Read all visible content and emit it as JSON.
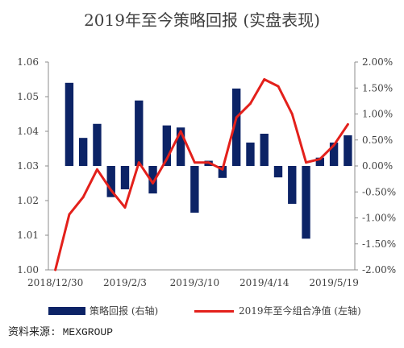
{
  "source": "资料来源: MEXGROUP",
  "chart_data": {
    "type": "bar",
    "title": "2019年至今策略回报 (实盘表现)",
    "categories": [
      "2018/12/30",
      "",
      "",
      "",
      "",
      "2019/2/3",
      "",
      "",
      "",
      "",
      "2019/3/10",
      "",
      "",
      "",
      "",
      "2019/4/14",
      "",
      "",
      "",
      "",
      "2019/5/19",
      ""
    ],
    "series": [
      {
        "name": "策略回报 (右轴)",
        "type": "bar",
        "axis": "right",
        "color": "#0c2366",
        "values": [
          null,
          1.6,
          0.54,
          0.81,
          -0.6,
          -0.45,
          1.26,
          -0.53,
          0.78,
          0.74,
          -0.9,
          0.1,
          -0.23,
          1.49,
          0.45,
          0.62,
          -0.22,
          -0.73,
          -1.4,
          0.16,
          0.45,
          0.59
        ]
      },
      {
        "name": "2019年至今组合净值 (左轴)",
        "type": "line",
        "axis": "left",
        "color": "#e3201b",
        "values": [
          1.0,
          1.016,
          1.021,
          1.029,
          1.023,
          1.018,
          1.031,
          1.025,
          1.032,
          1.04,
          1.031,
          1.031,
          1.029,
          1.044,
          1.048,
          1.055,
          1.053,
          1.045,
          1.031,
          1.032,
          1.036,
          1.042
        ]
      }
    ],
    "ylim": [
      1.0,
      1.06
    ],
    "y2lim": [
      -2.0,
      2.0
    ],
    "y_ticks": [
      "1.00",
      "1.01",
      "1.02",
      "1.03",
      "1.04",
      "1.05",
      "1.06"
    ],
    "y2_ticks": [
      "-2.00%",
      "-1.50%",
      "-1.00%",
      "-0.50%",
      "0.00%",
      "0.50%",
      "1.00%",
      "1.50%",
      "2.00%"
    ],
    "grid": false,
    "legend": "bottom"
  }
}
